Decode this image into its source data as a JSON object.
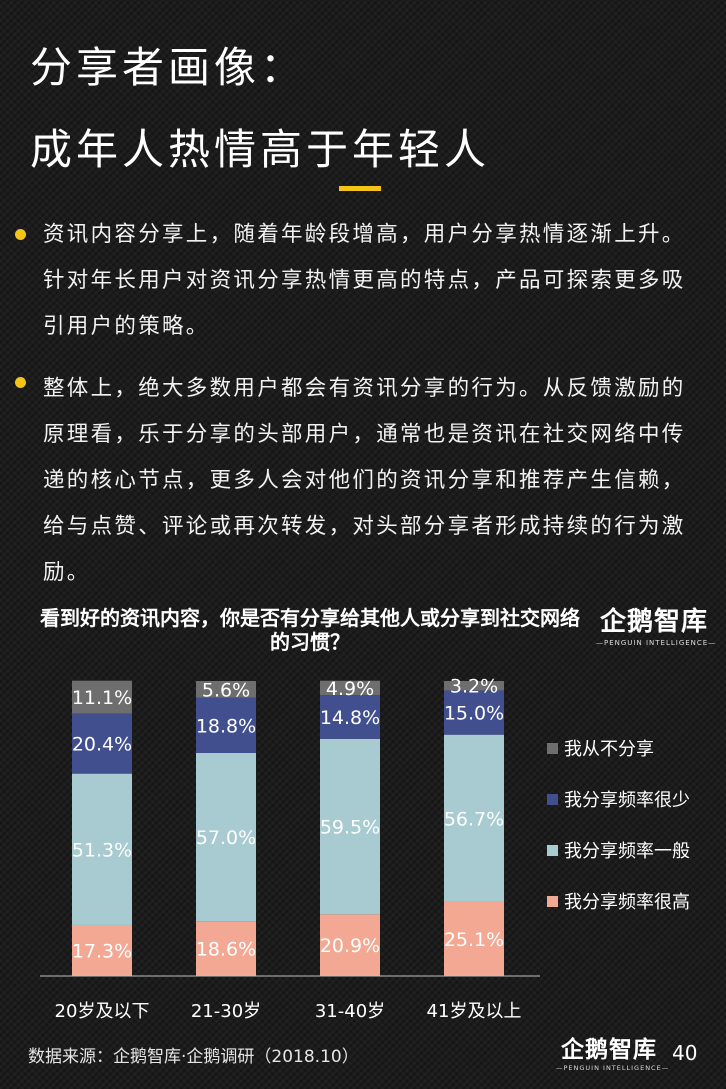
{
  "header": {
    "title_line1": "分享者画像：",
    "title_line2": "成年人热情高于年轻人"
  },
  "bullets": [
    "资讯内容分享上，随着年龄段增高，用户分享热情逐渐上升。针对年长用户对资讯分享热情更高的特点，产品可探索更多吸引用户的策略。",
    "整体上，绝大多数用户都会有资讯分享的行为。从反馈激励的原理看，乐于分享的头部用户，通常也是资讯在社交网络中传递的核心节点，更多人会对他们的资讯分享和推荐产生信赖，给与点赞、评论或再次转发，对头部分享者形成持续的行为激励。"
  ],
  "logo": {
    "name": "企鹅智库",
    "tagline": "—PENGUIN INTELLIGENCE—"
  },
  "chart_data": {
    "type": "bar",
    "stacked": true,
    "title": "看到好的资讯内容，你是否有分享给其他人或分享到社交网络的习惯？",
    "categories": [
      "20岁及以下",
      "21-30岁",
      "31-40岁",
      "41岁及以上"
    ],
    "series": [
      {
        "name": "我分享频率很高",
        "color": "#f2a893",
        "values": [
          17.3,
          18.6,
          20.9,
          25.1
        ]
      },
      {
        "name": "我分享频率一般",
        "color": "#a7cbd0",
        "values": [
          51.3,
          57.0,
          59.5,
          56.7
        ]
      },
      {
        "name": "我分享频率很少",
        "color": "#414f8e",
        "values": [
          20.4,
          18.8,
          14.8,
          15.0
        ]
      },
      {
        "name": "我从不分享",
        "color": "#6e6e6e",
        "values": [
          11.1,
          5.6,
          4.9,
          3.2
        ]
      }
    ],
    "value_suffix": "%",
    "ylim": [
      0,
      100
    ],
    "legend_position": "right",
    "grid": false
  },
  "footer": {
    "source": "数据来源：企鹅智库·企鹅调研（2018.10）",
    "page_number": "40"
  }
}
